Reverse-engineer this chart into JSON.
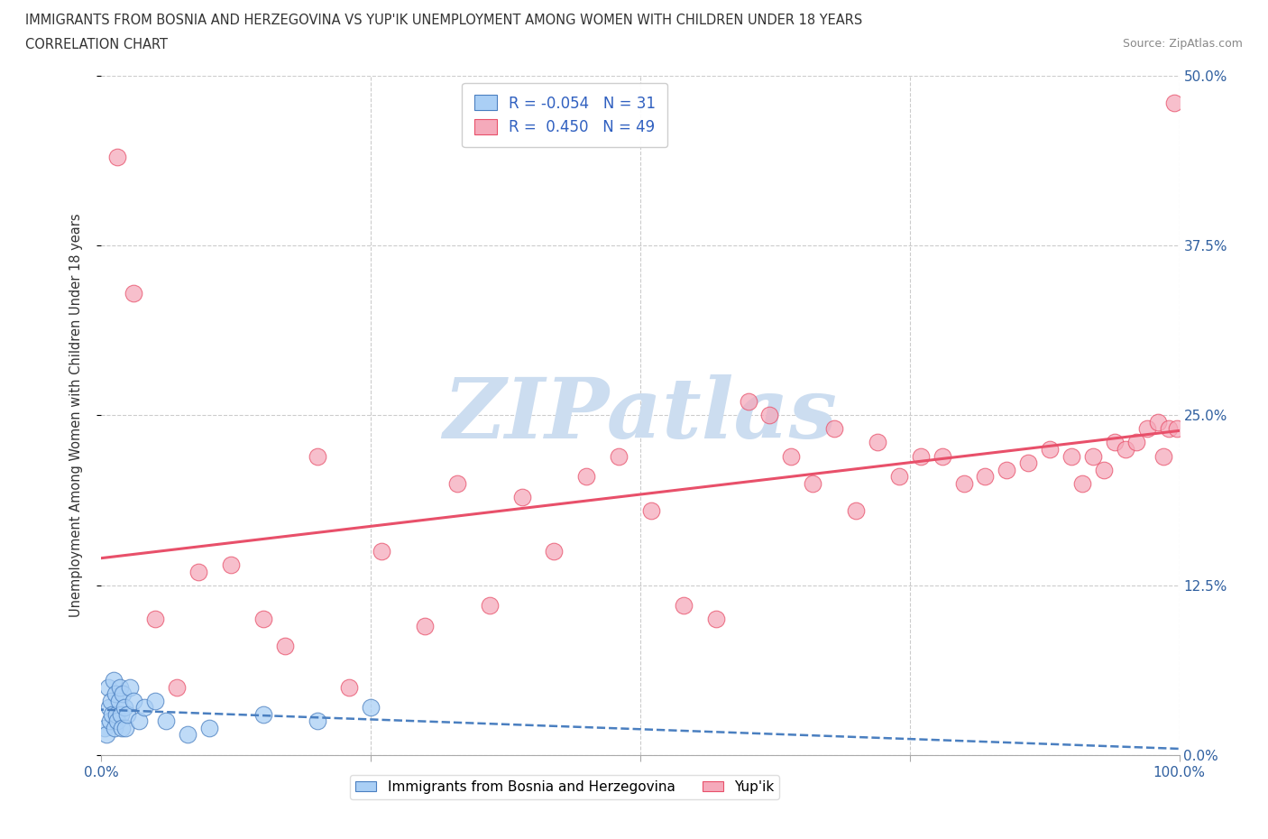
{
  "title_line1": "IMMIGRANTS FROM BOSNIA AND HERZEGOVINA VS YUP'IK UNEMPLOYMENT AMONG WOMEN WITH CHILDREN UNDER 18 YEARS",
  "title_line2": "CORRELATION CHART",
  "source": "Source: ZipAtlas.com",
  "ylabel": "Unemployment Among Women with Children Under 18 years",
  "xlim": [
    0,
    100
  ],
  "ylim": [
    0,
    50
  ],
  "xticks": [
    0,
    25,
    50,
    75,
    100
  ],
  "yticks": [
    0,
    12.5,
    25.0,
    37.5,
    50.0
  ],
  "xtick_labels_bottom": [
    "0.0%",
    "",
    "",
    "",
    "100.0%"
  ],
  "ytick_labels_right": [
    "0.0%",
    "12.5%",
    "25.0%",
    "37.5%",
    "50.0%"
  ],
  "bosnia_R": -0.054,
  "bosnia_N": 31,
  "yupik_R": 0.45,
  "yupik_N": 49,
  "bosnia_color": "#aacff5",
  "yupik_color": "#f5aabb",
  "trend_bosnia_color": "#4a7fc0",
  "trend_yupik_color": "#e8506a",
  "watermark_text": "ZIPatlas",
  "watermark_color": "#ccddf0",
  "bosnia_x": [
    0.3,
    0.5,
    0.6,
    0.7,
    0.8,
    0.9,
    1.0,
    1.1,
    1.2,
    1.3,
    1.4,
    1.5,
    1.6,
    1.7,
    1.8,
    1.9,
    2.0,
    2.1,
    2.2,
    2.4,
    2.6,
    3.0,
    3.5,
    4.0,
    5.0,
    6.0,
    8.0,
    10.0,
    15.0,
    20.0,
    25.0
  ],
  "bosnia_y": [
    2.0,
    1.5,
    5.0,
    3.5,
    2.5,
    4.0,
    3.0,
    5.5,
    2.0,
    4.5,
    3.0,
    2.5,
    4.0,
    5.0,
    3.0,
    2.0,
    4.5,
    3.5,
    2.0,
    3.0,
    5.0,
    4.0,
    2.5,
    3.5,
    4.0,
    2.5,
    1.5,
    2.0,
    3.0,
    2.5,
    3.5
  ],
  "yupik_x": [
    1.5,
    3.0,
    5.0,
    7.0,
    9.0,
    12.0,
    15.0,
    17.0,
    20.0,
    23.0,
    26.0,
    30.0,
    33.0,
    36.0,
    39.0,
    42.0,
    45.0,
    48.0,
    51.0,
    54.0,
    57.0,
    60.0,
    62.0,
    64.0,
    66.0,
    68.0,
    70.0,
    72.0,
    74.0,
    76.0,
    78.0,
    80.0,
    82.0,
    84.0,
    86.0,
    88.0,
    90.0,
    91.0,
    92.0,
    93.0,
    94.0,
    95.0,
    96.0,
    97.0,
    98.0,
    98.5,
    99.0,
    99.5,
    99.8
  ],
  "yupik_y": [
    44.0,
    34.0,
    10.0,
    5.0,
    13.5,
    14.0,
    10.0,
    8.0,
    22.0,
    5.0,
    15.0,
    9.5,
    20.0,
    11.0,
    19.0,
    15.0,
    20.5,
    22.0,
    18.0,
    11.0,
    10.0,
    26.0,
    25.0,
    22.0,
    20.0,
    24.0,
    18.0,
    23.0,
    20.5,
    22.0,
    22.0,
    20.0,
    20.5,
    21.0,
    21.5,
    22.5,
    22.0,
    20.0,
    22.0,
    21.0,
    23.0,
    22.5,
    23.0,
    24.0,
    24.5,
    22.0,
    24.0,
    48.0,
    24.0
  ]
}
